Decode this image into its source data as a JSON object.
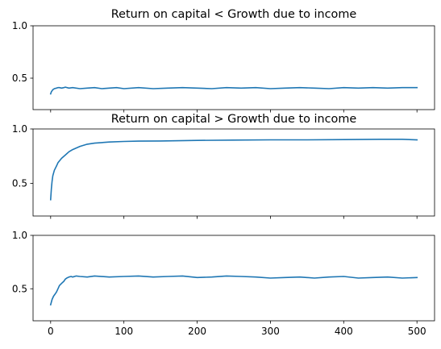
{
  "colors": {
    "series": "#1f77b4",
    "axes": "#000000",
    "background": "#ffffff"
  },
  "chart_data": [
    {
      "type": "line",
      "title": "Return on capital < Growth due to income",
      "xlabel": "",
      "ylabel": "",
      "xlim": [
        -24,
        524
      ],
      "ylim": [
        0.2,
        1.0
      ],
      "xticks": [
        0,
        100,
        200,
        300,
        400,
        500
      ],
      "yticks": [
        0.5,
        1.0
      ],
      "ytick_labels": [
        "0.5",
        "1.0"
      ],
      "show_xtick_labels": false,
      "grid": false,
      "series": [
        {
          "x": [
            0,
            1,
            2,
            3,
            5,
            8,
            10,
            12,
            15,
            18,
            20,
            25,
            30,
            40,
            50,
            60,
            70,
            80,
            90,
            100,
            120,
            140,
            160,
            180,
            200,
            220,
            240,
            260,
            280,
            300,
            320,
            340,
            360,
            380,
            400,
            420,
            440,
            460,
            480,
            500
          ],
          "y": [
            0.35,
            0.37,
            0.38,
            0.39,
            0.4,
            0.405,
            0.41,
            0.41,
            0.405,
            0.41,
            0.415,
            0.405,
            0.41,
            0.4,
            0.405,
            0.41,
            0.4,
            0.405,
            0.41,
            0.4,
            0.41,
            0.4,
            0.405,
            0.41,
            0.405,
            0.4,
            0.41,
            0.405,
            0.41,
            0.4,
            0.405,
            0.41,
            0.405,
            0.4,
            0.41,
            0.405,
            0.41,
            0.405,
            0.41,
            0.41
          ]
        }
      ]
    },
    {
      "type": "line",
      "title": "Return on capital > Growth due to income",
      "xlabel": "",
      "ylabel": "",
      "xlim": [
        -24,
        524
      ],
      "ylim": [
        0.2,
        1.0
      ],
      "xticks": [
        0,
        100,
        200,
        300,
        400,
        500
      ],
      "yticks": [
        0.5,
        1.0
      ],
      "ytick_labels": [
        "0.5",
        "1.0"
      ],
      "show_xtick_labels": false,
      "grid": false,
      "series": [
        {
          "x": [
            0,
            1,
            2,
            3,
            5,
            8,
            10,
            15,
            20,
            25,
            30,
            40,
            50,
            60,
            80,
            100,
            120,
            150,
            200,
            250,
            300,
            350,
            400,
            450,
            480,
            500
          ],
          "y": [
            0.35,
            0.45,
            0.52,
            0.57,
            0.62,
            0.66,
            0.69,
            0.73,
            0.76,
            0.79,
            0.81,
            0.84,
            0.86,
            0.87,
            0.88,
            0.885,
            0.888,
            0.89,
            0.895,
            0.898,
            0.9,
            0.9,
            0.902,
            0.905,
            0.905,
            0.9
          ]
        }
      ]
    },
    {
      "type": "line",
      "title": "",
      "xlabel": "",
      "ylabel": "",
      "xlim": [
        -24,
        524
      ],
      "ylim": [
        0.2,
        1.0
      ],
      "xticks": [
        0,
        100,
        200,
        300,
        400,
        500
      ],
      "xtick_labels": [
        "0",
        "100",
        "200",
        "300",
        "400",
        "500"
      ],
      "yticks": [
        0.5,
        1.0
      ],
      "ytick_labels": [
        "0.5",
        "1.0"
      ],
      "show_xtick_labels": true,
      "grid": false,
      "series": [
        {
          "x": [
            0,
            2,
            4,
            6,
            8,
            10,
            12,
            15,
            18,
            20,
            22,
            25,
            28,
            30,
            35,
            40,
            50,
            60,
            80,
            100,
            120,
            140,
            160,
            180,
            200,
            220,
            240,
            260,
            280,
            300,
            320,
            340,
            360,
            380,
            400,
            420,
            440,
            460,
            480,
            500
          ],
          "y": [
            0.35,
            0.4,
            0.43,
            0.45,
            0.47,
            0.5,
            0.53,
            0.55,
            0.57,
            0.59,
            0.6,
            0.61,
            0.615,
            0.61,
            0.62,
            0.615,
            0.61,
            0.62,
            0.61,
            0.615,
            0.62,
            0.61,
            0.615,
            0.62,
            0.605,
            0.61,
            0.62,
            0.615,
            0.61,
            0.6,
            0.605,
            0.61,
            0.6,
            0.61,
            0.615,
            0.6,
            0.605,
            0.61,
            0.6,
            0.605
          ]
        }
      ]
    }
  ]
}
